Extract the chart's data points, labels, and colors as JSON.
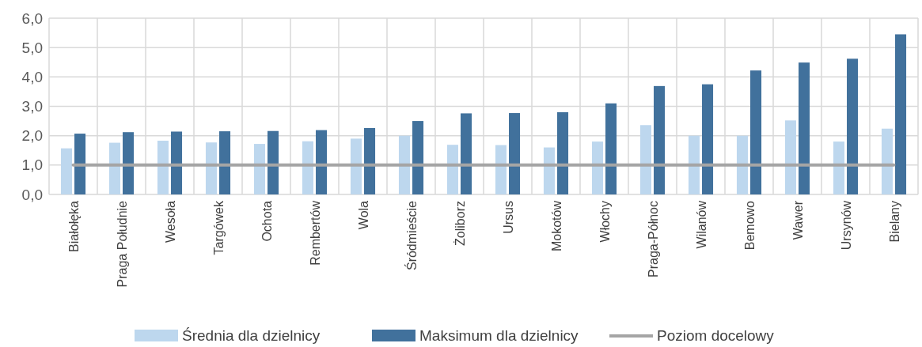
{
  "chart_data": {
    "type": "bar",
    "categories": [
      "Białołęka",
      "Praga Południe",
      "Wesoła",
      "Targówek",
      "Ochota",
      "Rembertów",
      "Wola",
      "Śródmieście",
      "Żoliborz",
      "Ursus",
      "Mokotów",
      "Włochy",
      "Praga-Północ",
      "Wilanów",
      "Bemowo",
      "Wawer",
      "Ursynów",
      "Bielany"
    ],
    "series": [
      {
        "name": "Średnia dla dzielnicy",
        "color": "#bdd7ee",
        "values": [
          1.57,
          1.76,
          1.83,
          1.77,
          1.72,
          1.81,
          1.9,
          2.0,
          1.69,
          1.68,
          1.6,
          1.8,
          2.36,
          2.0,
          2.0,
          2.52,
          1.8,
          2.24
        ]
      },
      {
        "name": "Maksimum dla dzielnicy",
        "color": "#41719c",
        "values": [
          2.07,
          2.12,
          2.14,
          2.15,
          2.16,
          2.19,
          2.26,
          2.5,
          2.76,
          2.77,
          2.8,
          3.1,
          3.69,
          3.75,
          4.22,
          4.49,
          4.62,
          5.45
        ]
      },
      {
        "name": "Poziom docelowy",
        "type": "line",
        "color": "#a5a5a5",
        "values": [
          1,
          1,
          1,
          1,
          1,
          1,
          1,
          1,
          1,
          1,
          1,
          1,
          1,
          1,
          1,
          1,
          1,
          1
        ]
      }
    ],
    "ylim": [
      0,
      6
    ],
    "yticks": [
      {
        "value": 0,
        "label": "0,0"
      },
      {
        "value": 1,
        "label": "1,0"
      },
      {
        "value": 2,
        "label": "2,0"
      },
      {
        "value": 3,
        "label": "3,0"
      },
      {
        "value": 4,
        "label": "4,0"
      },
      {
        "value": 5,
        "label": "5,0"
      },
      {
        "value": 6,
        "label": "6,0"
      }
    ],
    "grid": true,
    "legend": "bottom",
    "marker": "none",
    "line_style": "solid"
  }
}
